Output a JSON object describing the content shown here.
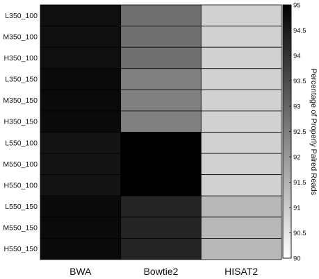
{
  "chart_data": {
    "type": "heatmap",
    "title": "",
    "rows": [
      "L350_100",
      "M350_100",
      "H350_100",
      "L350_150",
      "M350_150",
      "H350_150",
      "L550_100",
      "M550_100",
      "H550_100",
      "L550_150",
      "M550_150",
      "H550_150"
    ],
    "columns": [
      "BWA",
      "Bowtie2",
      "HISAT2"
    ],
    "values": [
      [
        94.7,
        92.8,
        90.9
      ],
      [
        94.7,
        92.8,
        90.9
      ],
      [
        94.7,
        92.8,
        90.9
      ],
      [
        94.8,
        92.5,
        90.9
      ],
      [
        94.8,
        92.5,
        90.9
      ],
      [
        94.8,
        92.5,
        90.9
      ],
      [
        94.6,
        95.0,
        90.9
      ],
      [
        94.6,
        95.0,
        90.9
      ],
      [
        94.6,
        95.0,
        90.9
      ],
      [
        94.8,
        94.3,
        91.4
      ],
      [
        94.8,
        94.3,
        91.4
      ],
      [
        94.8,
        94.3,
        91.4
      ]
    ],
    "colorbar": {
      "label": "Percentage of Properly Paired Reads",
      "range": [
        90,
        95
      ],
      "ticks": [
        "95",
        "94.5",
        "94",
        "93.5",
        "93",
        "92.5",
        "92",
        "91.5",
        "91",
        "90.5",
        "90"
      ],
      "low_color": "#ffffff",
      "high_color": "#000000"
    },
    "grid": true
  }
}
